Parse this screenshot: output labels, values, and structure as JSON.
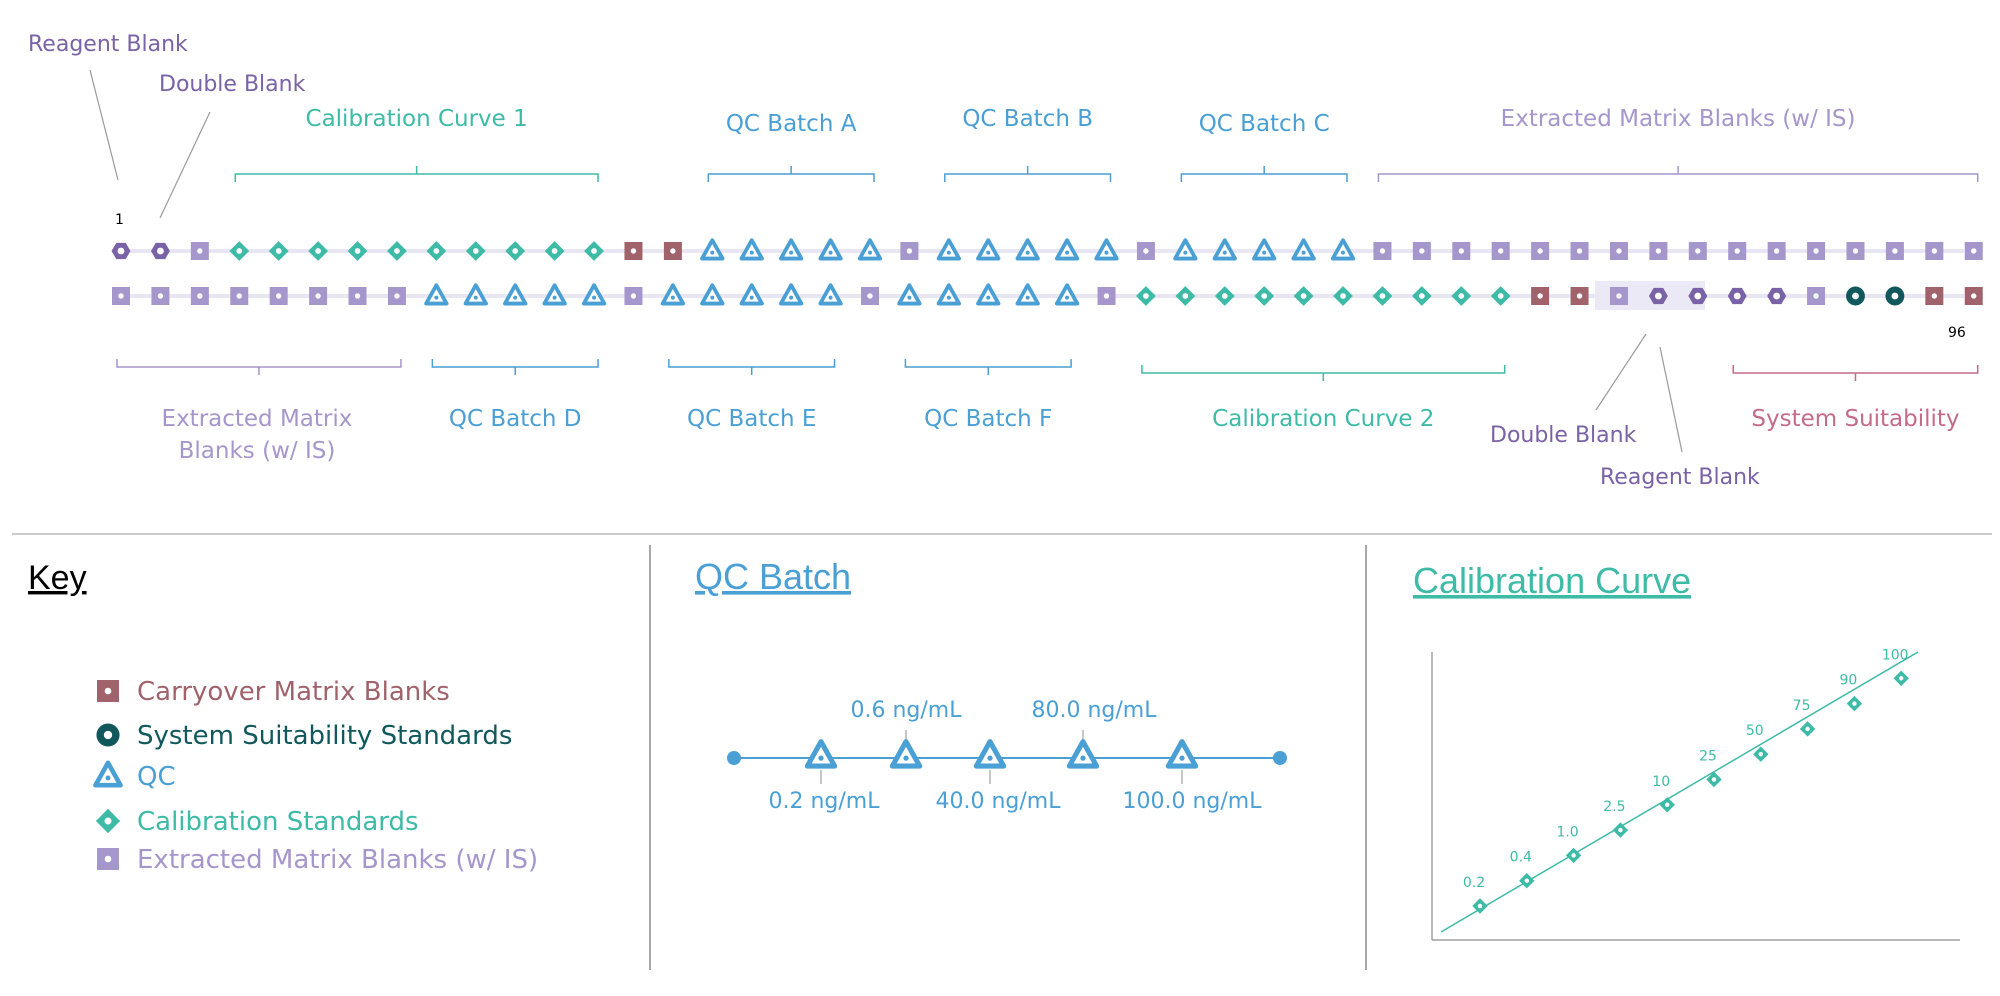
{
  "colors": {
    "reagent_blank": "#7a62a6",
    "double_blank": "#7a62a6",
    "calibration": "#3dbba6",
    "qc": "#4a9fd4",
    "extracted": "#a596cc",
    "carryover": "#a0636c",
    "suitability": "#10585c",
    "suit_label": "#c46b8a",
    "divider": "#b9b9b9"
  },
  "plate": {
    "first_index": "1",
    "last_index": "96",
    "row1": [
      "RB",
      "DB",
      "EX",
      "CAL",
      "CAL",
      "CAL",
      "CAL",
      "CAL",
      "CAL",
      "CAL",
      "CAL",
      "CAL",
      "CAL",
      "CO",
      "CO",
      "QC",
      "QC",
      "QC",
      "QC",
      "QC",
      "EX",
      "QC",
      "QC",
      "QC",
      "QC",
      "QC",
      "EX",
      "QC",
      "QC",
      "QC",
      "QC",
      "QC",
      "EX",
      "EX",
      "EX",
      "EX",
      "EX",
      "EX",
      "EX",
      "EX",
      "EX",
      "EX",
      "EX",
      "EX",
      "EX",
      "EX",
      "EX",
      "EX"
    ],
    "row2": [
      "EX",
      "EX",
      "EX",
      "EX",
      "EX",
      "EX",
      "EX",
      "EX",
      "QC",
      "QC",
      "QC",
      "QC",
      "QC",
      "EX",
      "QC",
      "QC",
      "QC",
      "QC",
      "QC",
      "EX",
      "QC",
      "QC",
      "QC",
      "QC",
      "QC",
      "EX",
      "CAL",
      "CAL",
      "CAL",
      "CAL",
      "CAL",
      "CAL",
      "CAL",
      "CAL",
      "CAL",
      "CAL",
      "CO",
      "CO",
      "EX",
      "DB",
      "RB",
      "RB",
      "RB",
      "EX",
      "SS",
      "SS",
      "CO",
      "CO"
    ]
  },
  "annotations": {
    "top": [
      {
        "label": "Reagent Blank",
        "kind": "reagent_blank"
      },
      {
        "label": "Double Blank",
        "kind": "double_blank"
      },
      {
        "label": "Calibration Curve 1",
        "kind": "calibration",
        "from": 3,
        "to": 12
      },
      {
        "label": "QC Batch A",
        "kind": "qc",
        "from": 15,
        "to": 19
      },
      {
        "label": "QC Batch B",
        "kind": "qc",
        "from": 21,
        "to": 25
      },
      {
        "label": "QC Batch C",
        "kind": "qc",
        "from": 27,
        "to": 31
      },
      {
        "label": "Extracted Matrix Blanks (w/ IS)",
        "kind": "extracted",
        "from": 32,
        "to": 47
      }
    ],
    "bottom": [
      {
        "label": "Extracted Matrix Blanks (w/ IS)",
        "kind": "extracted",
        "from": 0,
        "to": 7
      },
      {
        "label": "QC Batch D",
        "kind": "qc",
        "from": 8,
        "to": 12
      },
      {
        "label": "QC Batch E",
        "kind": "qc",
        "from": 14,
        "to": 18
      },
      {
        "label": "QC Batch F",
        "kind": "qc",
        "from": 20,
        "to": 24
      },
      {
        "label": "Calibration Curve 2",
        "kind": "calibration",
        "from": 26,
        "to": 35
      },
      {
        "label": "Double Blank",
        "kind": "double_blank"
      },
      {
        "label": "Reagent Blank",
        "kind": "reagent_blank"
      },
      {
        "label": "System Suitability",
        "kind": "suitability",
        "from": 41,
        "to": 47
      }
    ]
  },
  "key": {
    "title": "Key",
    "items": [
      {
        "label": "Carryover Matrix Blanks",
        "kind": "CO"
      },
      {
        "label": "System Suitability Standards",
        "kind": "SS"
      },
      {
        "label": "QC",
        "kind": "QC"
      },
      {
        "label": "Calibration Standards",
        "kind": "CAL"
      },
      {
        "label": "Extracted Matrix Blanks (w/ IS)",
        "kind": "EX"
      }
    ]
  },
  "qc_batch": {
    "title": "QC Batch",
    "top_labels": [
      "0.6 ng/mL",
      "80.0 ng/mL"
    ],
    "bottom_labels": [
      "0.2 ng/mL",
      "40.0 ng/mL",
      "100.0 ng/mL"
    ]
  },
  "chart_data": {
    "type": "scatter",
    "title": "Calibration Curve",
    "xlabel": "",
    "ylabel": "",
    "points": [
      {
        "label": "0.2",
        "x": 1,
        "y": 1
      },
      {
        "label": "0.4",
        "x": 2,
        "y": 2
      },
      {
        "label": "1.0",
        "x": 3,
        "y": 3
      },
      {
        "label": "2.5",
        "x": 4,
        "y": 4
      },
      {
        "label": "10",
        "x": 5,
        "y": 5
      },
      {
        "label": "25",
        "x": 6,
        "y": 6
      },
      {
        "label": "50",
        "x": 7,
        "y": 7
      },
      {
        "label": "75",
        "x": 8,
        "y": 8
      },
      {
        "label": "90",
        "x": 9,
        "y": 9
      },
      {
        "label": "100",
        "x": 10,
        "y": 10
      }
    ],
    "trendline": "linear"
  }
}
